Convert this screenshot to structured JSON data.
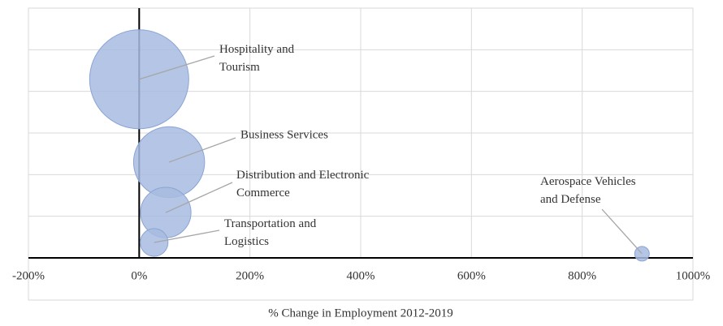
{
  "chart_data": {
    "type": "bubble",
    "x_label": "% Change in Employment 2012-2019",
    "xlim": [
      -200,
      1000
    ],
    "xticks": [
      {
        "value": -200,
        "label": "-200%"
      },
      {
        "value": 0,
        "label": "0%"
      },
      {
        "value": 200,
        "label": "200%"
      },
      {
        "value": 400,
        "label": "400%"
      },
      {
        "value": 600,
        "label": "600%"
      },
      {
        "value": 800,
        "label": "800%"
      },
      {
        "value": 1000,
        "label": "1000%"
      }
    ],
    "ylim": [
      0,
      6
    ],
    "yticks": [
      0,
      1,
      2,
      3,
      4,
      5,
      6
    ],
    "grid": true,
    "color": "#a7bbe0",
    "labels": [
      "Hospitality and Tourism",
      "Business Services",
      "Distribution and Electronic Commerce",
      "Transportation and Logistics",
      "Aerospace Vehicles and Defense"
    ],
    "x": [
      0,
      54,
      48,
      27,
      908
    ],
    "values": [
      4.29,
      2.3,
      1.09,
      0.37,
      0.1
    ],
    "sizes": [
      37000,
      19000,
      9600,
      2900,
      800
    ]
  }
}
